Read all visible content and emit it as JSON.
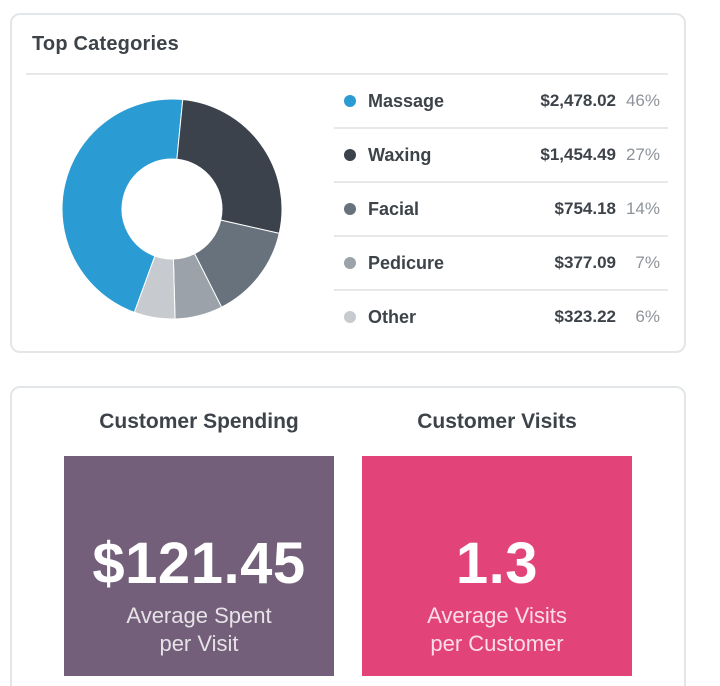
{
  "top_categories": {
    "title": "Top Categories",
    "items": [
      {
        "label": "Massage",
        "amount": "$2,478.02",
        "percent": "46%",
        "value": 46,
        "color": "#2b9bd3"
      },
      {
        "label": "Waxing",
        "amount": "$1,454.49",
        "percent": "27%",
        "value": 27,
        "color": "#3b424b"
      },
      {
        "label": "Facial",
        "amount": "$754.18",
        "percent": "14%",
        "value": 14,
        "color": "#67727d"
      },
      {
        "label": "Pedicure",
        "amount": "$377.09",
        "percent": "7%",
        "value": 7,
        "color": "#9ba2a9"
      },
      {
        "label": "Other",
        "amount": "$323.22",
        "percent": "6%",
        "value": 6,
        "color": "#c7cbcf"
      }
    ]
  },
  "chart_data": {
    "type": "pie",
    "categories": [
      "Massage",
      "Waxing",
      "Facial",
      "Pedicure",
      "Other"
    ],
    "values": [
      46,
      27,
      14,
      7,
      6
    ],
    "amounts": [
      2478.02,
      1454.49,
      754.18,
      377.09,
      323.22
    ],
    "title": "Top Categories",
    "donut": true,
    "legend": "right"
  },
  "customer_spending": {
    "heading": "Customer Spending",
    "value": "$121.45",
    "caption_line1": "Average Spent",
    "caption_line2": "per Visit",
    "color": "#735f7a"
  },
  "customer_visits": {
    "heading": "Customer Visits",
    "value": "1.3",
    "caption_line1": "Average Visits",
    "caption_line2": "per Customer",
    "color": "#e2447a"
  }
}
